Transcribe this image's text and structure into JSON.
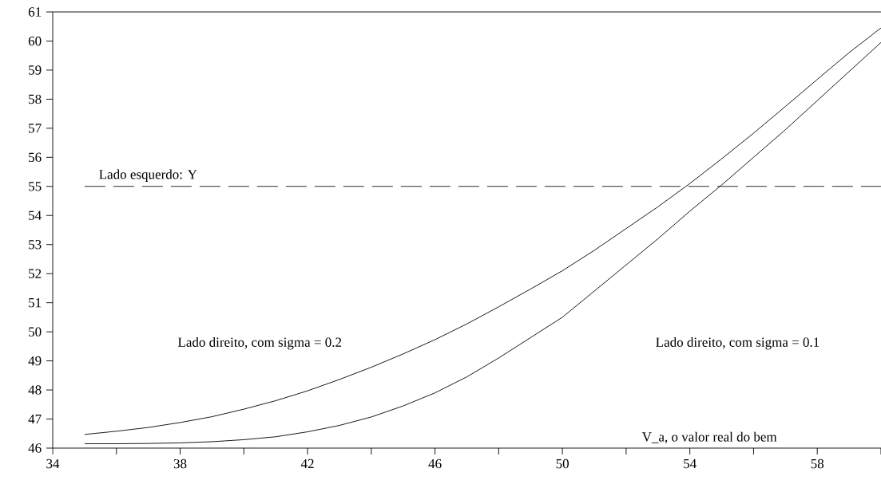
{
  "chart_data": {
    "type": "line",
    "xlabel": "V_a, o valor real do bem",
    "x": [
      35,
      36,
      37,
      38,
      39,
      40,
      41,
      42,
      43,
      44,
      45,
      46,
      47,
      48,
      49,
      50,
      51,
      52,
      53,
      54,
      55,
      56,
      57,
      58,
      59,
      60
    ],
    "series": [
      {
        "color": "#000000",
        "values": [
          46.47,
          46.58,
          46.71,
          46.88,
          47.08,
          47.34,
          47.63,
          47.97,
          48.36,
          48.78,
          49.24,
          49.73,
          50.27,
          50.86,
          51.47,
          52.1,
          52.8,
          53.55,
          54.3,
          55.1,
          55.95,
          56.83,
          57.75,
          58.68,
          59.6,
          60.45
        ]
      },
      {
        "color": "#000000",
        "values": [
          46.15,
          46.15,
          46.16,
          46.18,
          46.22,
          46.29,
          46.39,
          46.56,
          46.78,
          47.07,
          47.45,
          47.9,
          48.45,
          49.1,
          49.8,
          50.5,
          51.4,
          52.3,
          53.2,
          54.15,
          55.05,
          56.0,
          56.95,
          57.95,
          58.95,
          59.95
        ]
      }
    ],
    "xlim": [
      34,
      60
    ],
    "ylim": [
      46,
      61
    ],
    "xticks": [
      34,
      {
        "value": 36,
        "label": null
      },
      38,
      {
        "value": 40,
        "label": null
      },
      42,
      {
        "value": 44,
        "label": null
      },
      46,
      {
        "value": 48,
        "label": null
      },
      50,
      {
        "value": 52,
        "label": null
      },
      54,
      {
        "value": 56,
        "label": null
      },
      58,
      {
        "value": 60,
        "label": null
      }
    ],
    "yticks": [
      46,
      47,
      48,
      49,
      50,
      51,
      52,
      53,
      54,
      55,
      56,
      57,
      58,
      59,
      60,
      61
    ],
    "ref_lines": [
      {
        "axis": "y",
        "value": 55,
        "label": "Lado esquerdo: Y",
        "color": "#000000",
        "line_style": "dashed"
      }
    ],
    "annotations": [
      "Lado direito, com sigma = 0.2",
      "Lado direito, com sigma = 0.1"
    ],
    "marker": "none",
    "line_style": "solid"
  }
}
